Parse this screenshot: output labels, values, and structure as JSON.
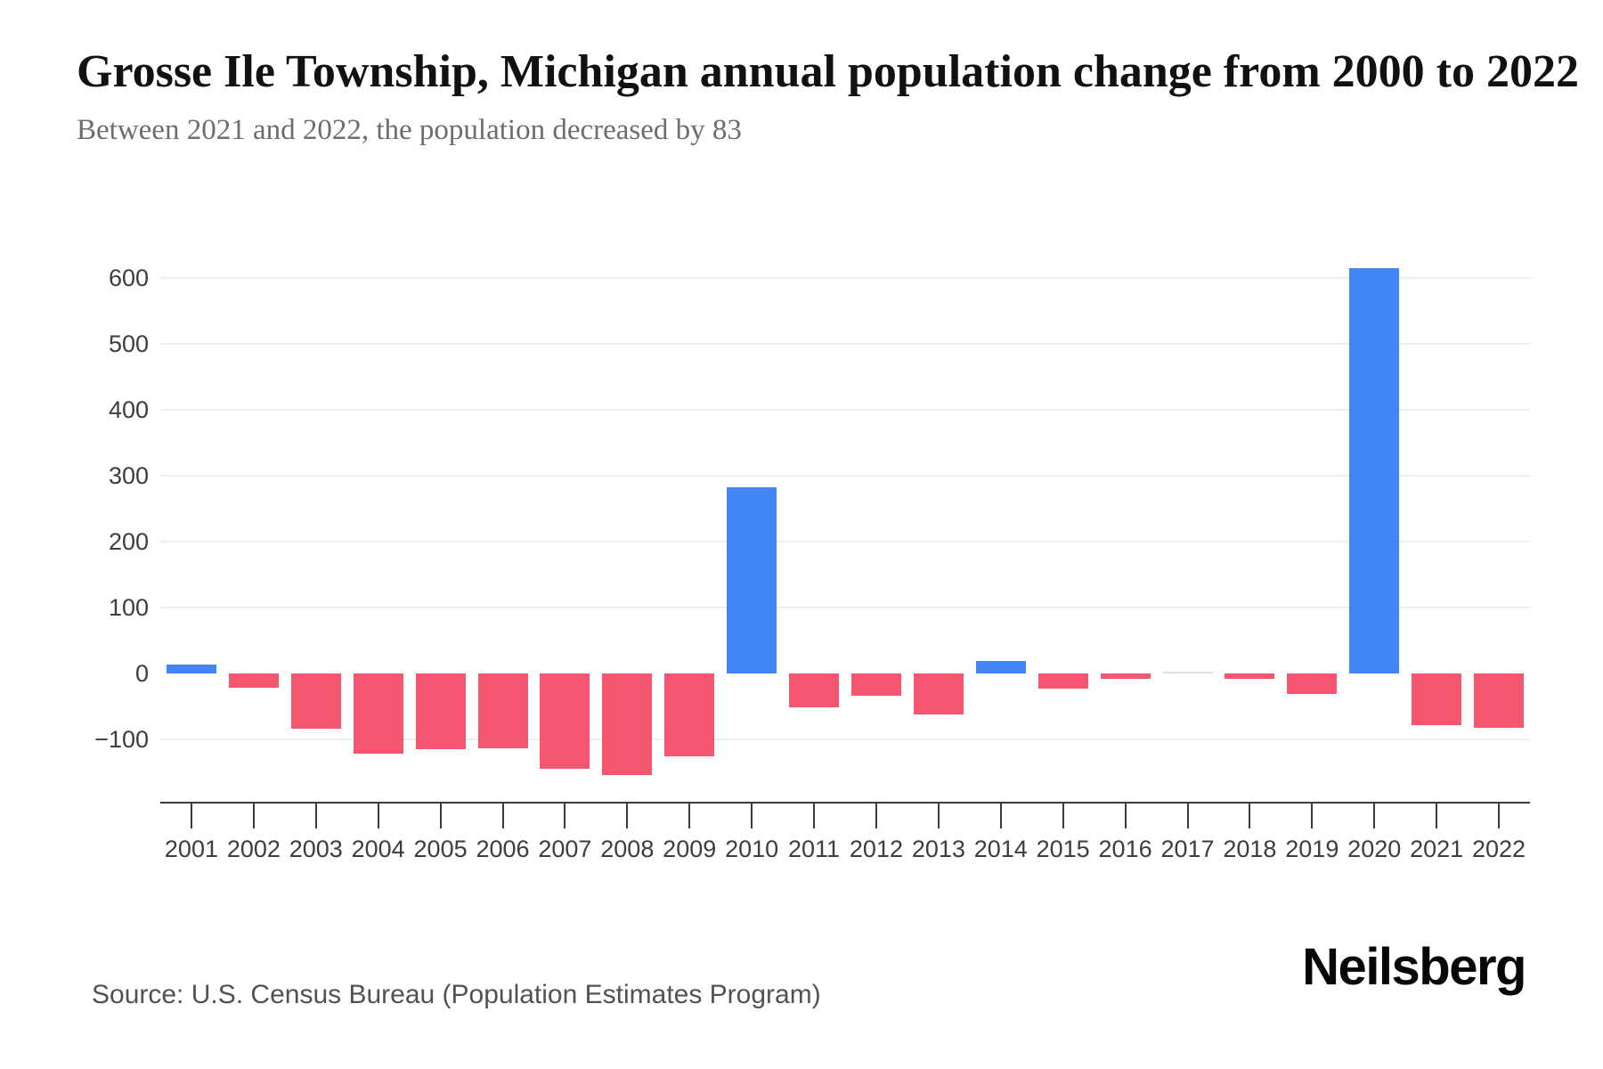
{
  "header": {
    "title": "Grosse Ile Township, Michigan annual population change from 2000 to 2022",
    "subtitle": "Between 2021 and 2022, the population decreased by 83"
  },
  "chart_data": {
    "type": "bar",
    "title": "Grosse Ile Township, Michigan annual population change from 2000 to 2022",
    "xlabel": "",
    "ylabel": "",
    "categories": [
      "2001",
      "2002",
      "2003",
      "2004",
      "2005",
      "2006",
      "2007",
      "2008",
      "2009",
      "2010",
      "2011",
      "2012",
      "2013",
      "2014",
      "2015",
      "2016",
      "2017",
      "2018",
      "2019",
      "2020",
      "2021",
      "2022"
    ],
    "values": [
      14,
      -21,
      -84,
      -121,
      -115,
      -114,
      -145,
      -154,
      -125,
      282,
      -52,
      -34,
      -62,
      19,
      -23,
      -8,
      0,
      -8,
      -31,
      615,
      -79,
      -83
    ],
    "yticks": [
      600,
      500,
      400,
      300,
      200,
      100,
      0,
      -100
    ],
    "ylim": [
      -170,
      650
    ],
    "grid": "horizontal gridlines at labeled ticks except 0",
    "legend": "none",
    "positive_color": "#4285f4",
    "negative_color": "#f5566f",
    "zero_color": "#e0e0e0",
    "gridline_color": "#f0f0f0",
    "axis_color": "#3c3c3c",
    "label_color": "#3d3d3d"
  },
  "footer": {
    "source": "Source: U.S. Census Bureau (Population Estimates Program)",
    "logo": "Neilsberg"
  }
}
